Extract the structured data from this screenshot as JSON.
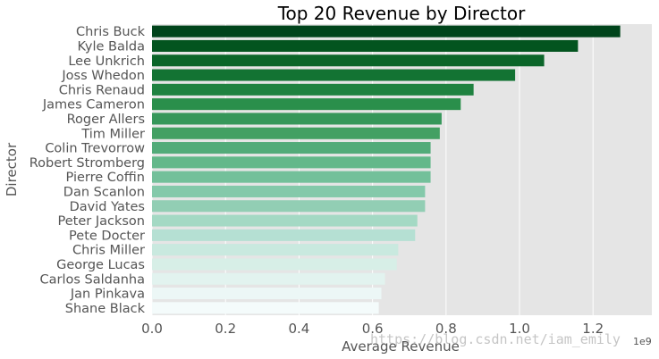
{
  "chart_data": {
    "type": "bar",
    "orientation": "horizontal",
    "title": "Top 20 Revenue by Director",
    "xlabel": "Average Revenue",
    "ylabel": "Director",
    "x_offset_label": "1e9",
    "xlim": [
      0,
      1.36
    ],
    "xticks": [
      0.0,
      0.2,
      0.4,
      0.6,
      0.8,
      1.0,
      1.2
    ],
    "xtick_labels": [
      "0.0",
      "0.2",
      "0.4",
      "0.6",
      "0.8",
      "1.0",
      "1.2"
    ],
    "grid": true,
    "categories": [
      "Chris Buck",
      "Kyle Balda",
      "Lee Unkrich",
      "Joss Whedon",
      "Chris Renaud",
      "James Cameron",
      "Roger Allers",
      "Tim Miller",
      "Colin Trevorrow",
      "Robert Stromberg",
      "Pierre Coffin",
      "Dan Scanlon",
      "David Yates",
      "Peter Jackson",
      "Pete Docter",
      "Chris Miller",
      "George Lucas",
      "Carlos Saldanha",
      "Jan Pinkava",
      "Shane Black"
    ],
    "values": [
      1.274,
      1.159,
      1.067,
      0.988,
      0.875,
      0.84,
      0.788,
      0.783,
      0.758,
      0.758,
      0.758,
      0.743,
      0.743,
      0.722,
      0.716,
      0.67,
      0.666,
      0.634,
      0.624,
      0.617
    ],
    "colors": [
      "#00441b",
      "#03541f",
      "#0b6529",
      "#137333",
      "#1f8240",
      "#2a8f4b",
      "#36975a",
      "#43a063",
      "#52ab79",
      "#63b88a",
      "#73c09a",
      "#84c9aa",
      "#92ceb4",
      "#a4d9c4",
      "#b5e0d3",
      "#c9e9df",
      "#d7efe7",
      "#e2f3ef",
      "#ecf7f6",
      "#f4fbfb"
    ]
  },
  "watermark": "https://blog.csdn.net/iam_emily"
}
